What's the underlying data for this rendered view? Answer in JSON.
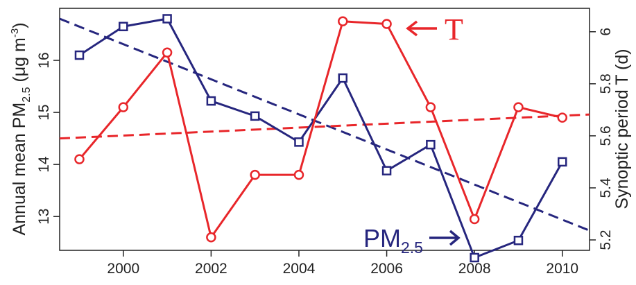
{
  "chart_data": {
    "type": "line",
    "x": [
      1999,
      2000,
      2001,
      2002,
      2003,
      2004,
      2005,
      2006,
      2007,
      2008,
      2009,
      2010
    ],
    "xlim": [
      1998.55,
      2010.62
    ],
    "xticks": [
      2000,
      2002,
      2004,
      2006,
      2008,
      2010
    ],
    "y_left": {
      "label_main": "Annual mean PM",
      "label_sub": "2.5",
      "label_unit_open": " (μg m",
      "label_sup": "-3",
      "label_close": ")",
      "lim": [
        12.35,
        17.0
      ],
      "ticks": [
        13,
        14,
        15,
        16
      ]
    },
    "y_right": {
      "label": "Synoptic period T (d)",
      "lim": [
        5.16,
        6.09
      ],
      "ticks": [
        5.2,
        5.4,
        5.6,
        5.8,
        6.0
      ],
      "tick_labels": [
        "5.2",
        "5.4",
        "5.6",
        "5.8",
        "6"
      ]
    },
    "series": [
      {
        "axis": "left",
        "color": "#26267e",
        "marker": "square",
        "values": [
          16.1,
          16.65,
          16.8,
          15.22,
          14.93,
          14.43,
          15.66,
          13.88,
          14.38,
          12.21,
          12.54,
          14.05
        ]
      },
      {
        "axis": "right",
        "color": "#e8262a",
        "marker": "circle",
        "values": [
          5.51,
          5.71,
          5.92,
          5.21,
          5.45,
          5.45,
          6.04,
          6.03,
          5.71,
          5.28,
          5.71,
          5.67
        ]
      }
    ],
    "trends": [
      {
        "axis": "left",
        "color": "#26267e",
        "x": [
          1998.55,
          2010.62
        ],
        "y": [
          16.8,
          12.73
        ]
      },
      {
        "axis": "left",
        "color": "#e8262a",
        "x": [
          1998.55,
          2010.62
        ],
        "y": [
          14.5,
          14.96
        ]
      }
    ],
    "annotations": {
      "t_label": "T",
      "t_color": "#e8262a",
      "pm_label_main": "PM",
      "pm_label_sub": "2.5",
      "pm_color": "#26267e"
    },
    "grid": false
  }
}
